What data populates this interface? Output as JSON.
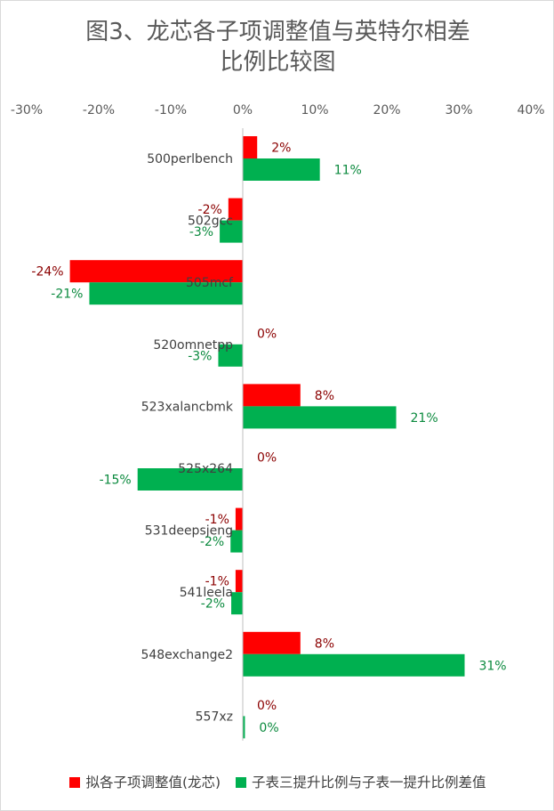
{
  "chart_data": {
    "type": "bar",
    "orientation": "horizontal",
    "title_lines": [
      "图3、龙芯各子项调整值与英特尔相差",
      "比例比较图"
    ],
    "categories": [
      "500perlbench",
      "502gcc",
      "505mcf",
      "520omnetpp",
      "523xalancbmk",
      "525x264",
      "531deepsjeng",
      "541leela",
      "548exchange2",
      "557xz"
    ],
    "series": [
      {
        "name": "拟各子项调整值(龙芯)",
        "color": "#ff0000",
        "values": [
          2,
          -2,
          -24,
          0,
          8,
          0,
          -1,
          -1,
          8,
          0
        ],
        "labels": [
          "2%",
          "-2%",
          "-24%",
          "0%",
          "8%",
          "0%",
          "-1%",
          "-1%",
          "8%",
          "0%"
        ]
      },
      {
        "name": "子表三提升比例与子表一提升比例差值",
        "color": "#00b050",
        "values": [
          10.7,
          -3.2,
          -21.3,
          -3.4,
          21.3,
          -14.6,
          -1.7,
          -1.6,
          30.8,
          0.3
        ],
        "labels": [
          "11%",
          "-3%",
          "-21%",
          "-3%",
          "21%",
          "-15%",
          "-2%",
          "-2%",
          "31%",
          "0%"
        ]
      }
    ],
    "xlim": [
      -30,
      40
    ],
    "xticks": [
      -30,
      -20,
      -10,
      0,
      10,
      20,
      30,
      40
    ],
    "xtick_labels": [
      "-30%",
      "-20%",
      "-10%",
      "0%",
      "10%",
      "20%",
      "30%",
      "40%"
    ],
    "axis_position": "top",
    "legend_position": "bottom",
    "grid": false
  }
}
